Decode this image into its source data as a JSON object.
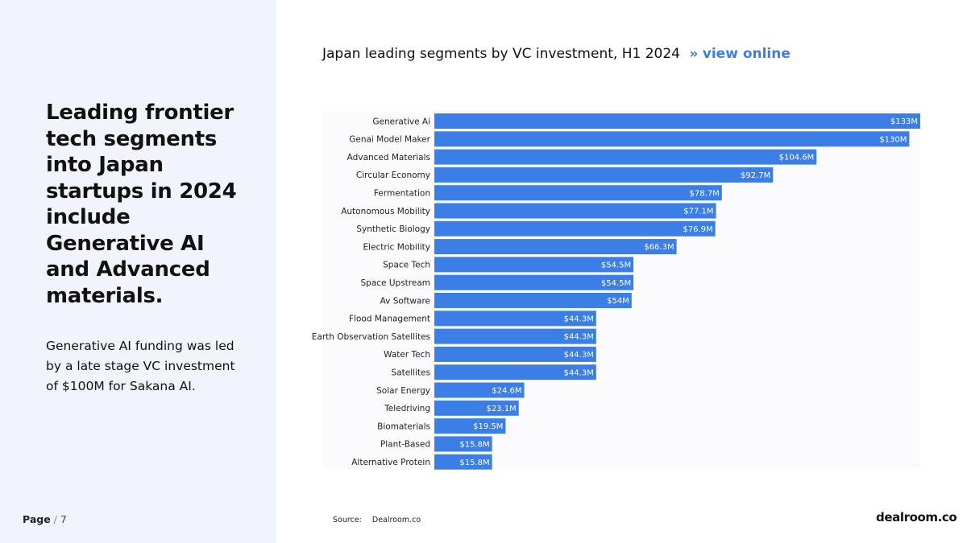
{
  "left_panel": {
    "headline": "Leading frontier tech segments into Japan startups in 2024 include Generative AI and Advanced materials.",
    "subtext": "Generative AI funding was led by a late stage VC investment of $100M for Sakana AI."
  },
  "footer": {
    "page_word": "Page",
    "page_sep": "/",
    "page_number": "7",
    "source_label": "Source:",
    "source_value": "Dealroom.co",
    "logo": "dealroom.co"
  },
  "chart_header": {
    "title": "Japan leading segments by VC investment, H1 2024",
    "arrow": "»",
    "link_label": "view online"
  },
  "colors": {
    "bar": "#3a7ee6",
    "link": "#3a7ee6",
    "panel_bg": "#f1f4fa"
  },
  "chart_data": {
    "type": "bar",
    "orientation": "horizontal",
    "title": "Japan leading segments by VC investment, H1 2024",
    "unit": "$M",
    "xlim": [
      0,
      133
    ],
    "grid": false,
    "legend": "none",
    "categories": [
      "Generative Ai",
      "Genai Model Maker",
      "Advanced Materials",
      "Circular Economy",
      "Fermentation",
      "Autonomous Mobility",
      "Synthetic Biology",
      "Electric Mobility",
      "Space Tech",
      "Space Upstream",
      "Av Software",
      "Flood Management",
      "Earth Observation Satellites",
      "Water Tech",
      "Satellites",
      "Solar Energy",
      "Teledriving",
      "Biomaterials",
      "Plant-Based",
      "Alternative Protein"
    ],
    "values": [
      133,
      130,
      104.6,
      92.7,
      78.7,
      77.1,
      76.9,
      66.3,
      54.5,
      54.5,
      54,
      44.3,
      44.3,
      44.3,
      44.3,
      24.6,
      23.1,
      19.5,
      15.8,
      15.8
    ],
    "value_labels": [
      "$133M",
      "$130M",
      "$104.6M",
      "$92.7M",
      "$78.7M",
      "$77.1M",
      "$76.9M",
      "$66.3M",
      "$54.5M",
      "$54.5M",
      "$54M",
      "$44.3M",
      "$44.3M",
      "$44.3M",
      "$44.3M",
      "$24.6M",
      "$23.1M",
      "$19.5M",
      "$15.8M",
      "$15.8M"
    ]
  }
}
